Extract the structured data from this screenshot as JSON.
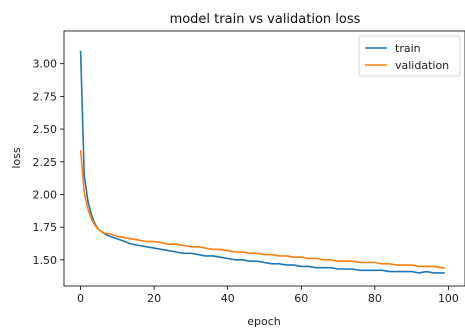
{
  "chart_data": {
    "type": "line",
    "title": "model train vs validation loss",
    "xlabel": "epoch",
    "ylabel": "loss",
    "xlim": [
      -4.5,
      104.5
    ],
    "ylim": [
      1.3,
      3.25
    ],
    "xticks": [
      0,
      20,
      40,
      60,
      80,
      100
    ],
    "xtick_labels": [
      "0",
      "20",
      "40",
      "60",
      "80",
      "100"
    ],
    "yticks": [
      1.5,
      1.75,
      2.0,
      2.25,
      2.5,
      2.75,
      3.0
    ],
    "ytick_labels": [
      "1.50",
      "1.75",
      "2.00",
      "2.25",
      "2.50",
      "2.75",
      "3.00"
    ],
    "grid": false,
    "legend_position": "top-right",
    "series": [
      {
        "name": "train",
        "color": "#1f77b4",
        "x": [
          0,
          1,
          2,
          3,
          4,
          5,
          6,
          7,
          8,
          9,
          10,
          12,
          14,
          16,
          18,
          20,
          22,
          24,
          26,
          28,
          30,
          32,
          34,
          36,
          38,
          40,
          42,
          44,
          46,
          48,
          50,
          52,
          54,
          56,
          58,
          60,
          62,
          64,
          66,
          68,
          70,
          72,
          74,
          76,
          78,
          80,
          82,
          84,
          86,
          88,
          90,
          92,
          94,
          96,
          98,
          99
        ],
        "y": [
          3.1,
          2.15,
          1.95,
          1.84,
          1.77,
          1.73,
          1.71,
          1.69,
          1.68,
          1.67,
          1.66,
          1.64,
          1.62,
          1.61,
          1.6,
          1.59,
          1.58,
          1.57,
          1.56,
          1.55,
          1.55,
          1.54,
          1.53,
          1.53,
          1.52,
          1.51,
          1.5,
          1.5,
          1.49,
          1.49,
          1.48,
          1.47,
          1.47,
          1.46,
          1.46,
          1.45,
          1.45,
          1.44,
          1.44,
          1.44,
          1.43,
          1.43,
          1.43,
          1.42,
          1.42,
          1.42,
          1.42,
          1.41,
          1.41,
          1.41,
          1.41,
          1.4,
          1.41,
          1.4,
          1.4,
          1.4
        ]
      },
      {
        "name": "validation",
        "color": "#ff7f0e",
        "x": [
          0,
          1,
          2,
          3,
          4,
          5,
          6,
          7,
          8,
          9,
          10,
          12,
          14,
          16,
          18,
          20,
          22,
          24,
          26,
          28,
          30,
          32,
          34,
          36,
          38,
          40,
          42,
          44,
          46,
          48,
          50,
          52,
          54,
          56,
          58,
          60,
          62,
          64,
          66,
          68,
          70,
          72,
          74,
          76,
          78,
          80,
          82,
          84,
          86,
          88,
          90,
          92,
          94,
          96,
          98,
          99
        ],
        "y": [
          2.34,
          2.02,
          1.89,
          1.81,
          1.76,
          1.73,
          1.71,
          1.7,
          1.7,
          1.69,
          1.68,
          1.67,
          1.66,
          1.65,
          1.64,
          1.64,
          1.63,
          1.62,
          1.62,
          1.61,
          1.6,
          1.6,
          1.59,
          1.58,
          1.58,
          1.57,
          1.56,
          1.56,
          1.55,
          1.55,
          1.54,
          1.54,
          1.53,
          1.53,
          1.52,
          1.52,
          1.51,
          1.51,
          1.5,
          1.5,
          1.49,
          1.49,
          1.49,
          1.48,
          1.48,
          1.48,
          1.47,
          1.47,
          1.46,
          1.46,
          1.46,
          1.45,
          1.45,
          1.45,
          1.44,
          1.44
        ]
      }
    ]
  }
}
